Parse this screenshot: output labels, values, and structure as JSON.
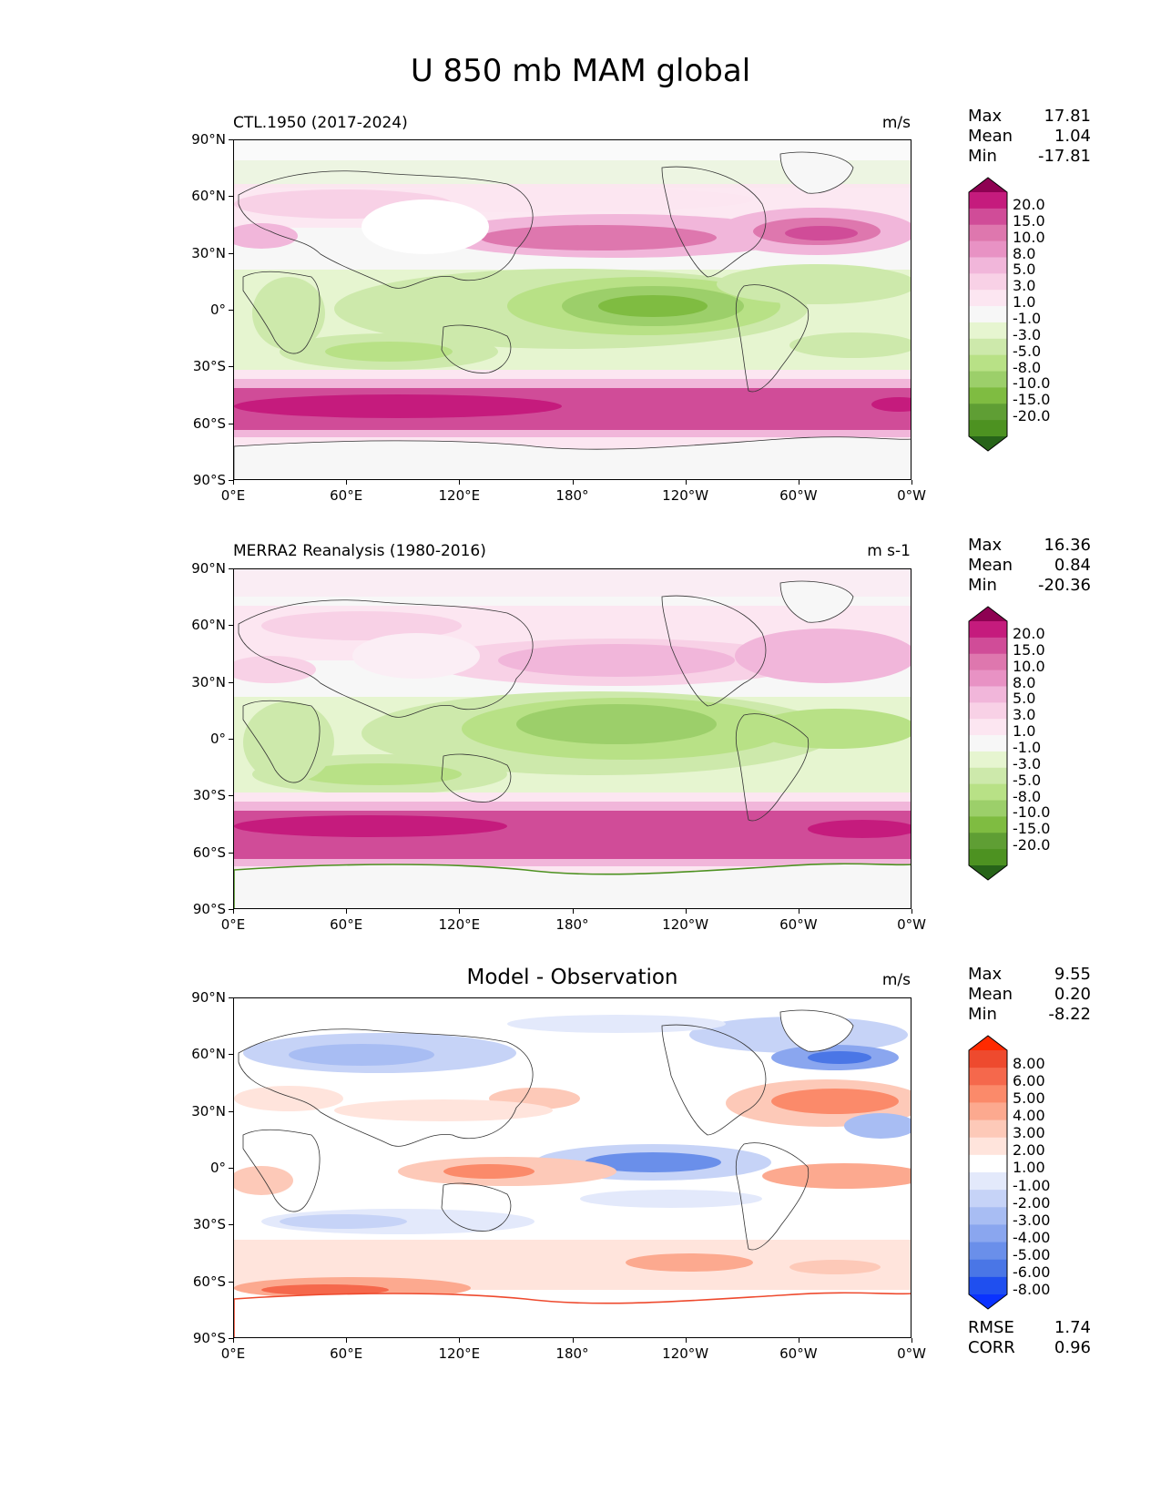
{
  "title": "U 850 mb MAM global",
  "y_ticks": [
    "90°N",
    "60°N",
    "30°N",
    "0°",
    "30°S",
    "60°S",
    "90°S"
  ],
  "x_ticks": [
    "0°E",
    "60°E",
    "120°E",
    "180°",
    "120°W",
    "60°W",
    "0°W"
  ],
  "colors": {
    "pos_scale": [
      "#f7f7f7",
      "#fce6f1",
      "#f8d1e6",
      "#f1b6da",
      "#e892c4",
      "#de77ae",
      "#d04c98",
      "#c51b7d",
      "#8e0152"
    ],
    "neg_scale": [
      "#f4f8ee",
      "#e6f5d0",
      "#cde9ab",
      "#b8e186",
      "#9ccf6a",
      "#7fbc41",
      "#5f9e34",
      "#4d9221",
      "#276419"
    ],
    "diff_pos": [
      "#ffffff",
      "#ffe4dc",
      "#fdc9b8",
      "#fca98f",
      "#fb8a6a",
      "#f5684c",
      "#ee4a2e",
      "#ff2a00"
    ],
    "diff_neg": [
      "#ffffff",
      "#e3e9fb",
      "#c6d3f7",
      "#a8bdf3",
      "#8aa6ef",
      "#6a8fea",
      "#4a76e6",
      "#1f4fef",
      "#0a32ff"
    ]
  },
  "panels": [
    {
      "id": "model",
      "title": "CTL.1950 (2017-2024)",
      "units": "m/s",
      "stats": {
        "max_label": "Max",
        "max": "17.81",
        "mean_label": "Mean",
        "mean": "1.04",
        "min_label": "Min",
        "min": "-17.81"
      },
      "colorbar": [
        "20.0",
        "15.0",
        "10.0",
        "8.0",
        "5.0",
        "3.0",
        "1.0",
        "-1.0",
        "-3.0",
        "-5.0",
        "-8.0",
        "-10.0",
        "-15.0",
        "-20.0"
      ]
    },
    {
      "id": "obs",
      "title": "MERRA2 Reanalysis (1980-2016)",
      "units": "m s-1",
      "stats": {
        "max_label": "Max",
        "max": "16.36",
        "mean_label": "Mean",
        "mean": "0.84",
        "min_label": "Min",
        "min": "-20.36"
      },
      "colorbar": [
        "20.0",
        "15.0",
        "10.0",
        "8.0",
        "5.0",
        "3.0",
        "1.0",
        "-1.0",
        "-3.0",
        "-5.0",
        "-8.0",
        "-10.0",
        "-15.0",
        "-20.0"
      ]
    },
    {
      "id": "diff",
      "title": "Model - Observation",
      "units": "m/s",
      "stats": {
        "max_label": "Max",
        "max": "9.55",
        "mean_label": "Mean",
        "mean": "0.20",
        "min_label": "Min",
        "min": "-8.22"
      },
      "colorbar": [
        "8.00",
        "6.00",
        "5.00",
        "4.00",
        "3.00",
        "2.00",
        "1.00",
        "-1.00",
        "-2.00",
        "-3.00",
        "-4.00",
        "-5.00",
        "-6.00",
        "-8.00"
      ],
      "metrics": {
        "rmse_label": "RMSE",
        "rmse": "1.74",
        "corr_label": "CORR",
        "corr": "0.96"
      }
    }
  ]
}
